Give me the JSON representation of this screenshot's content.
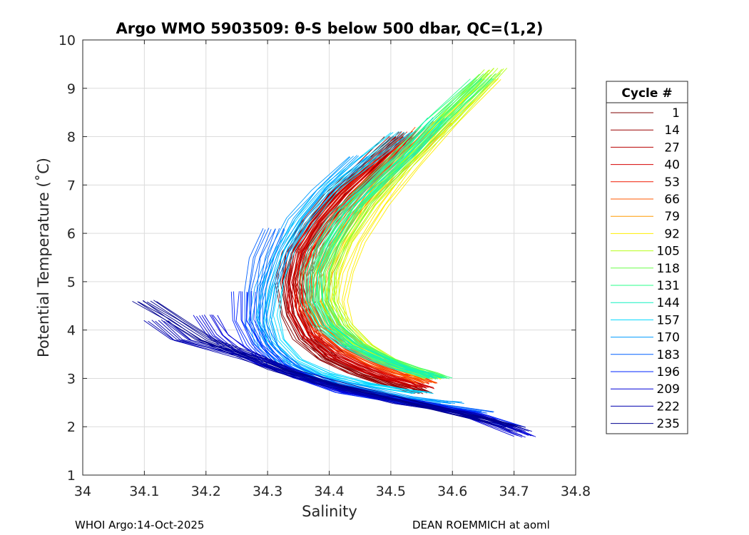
{
  "chart_data": {
    "type": "line",
    "title": "Argo WMO 5903509: θ-S below 500 dbar,  QC=(1,2)",
    "xlabel": "Salinity",
    "ylabel": "Potential Temperature (˚C)",
    "xlim": [
      34,
      34.8
    ],
    "ylim": [
      1,
      10
    ],
    "xticks": [
      "34",
      "34.1",
      "34.2",
      "34.3",
      "34.4",
      "34.5",
      "34.6",
      "34.7",
      "34.8"
    ],
    "yticks": [
      "1",
      "2",
      "3",
      "4",
      "5",
      "6",
      "7",
      "8",
      "9",
      "10"
    ],
    "grid": true,
    "legend": {
      "title": "Cycle #",
      "placement": "right-outside",
      "entries": [
        {
          "label": "1",
          "color": "#7f0000"
        },
        {
          "label": "14",
          "color": "#9a0000"
        },
        {
          "label": "27",
          "color": "#b80000"
        },
        {
          "label": "40",
          "color": "#d40000"
        },
        {
          "label": "53",
          "color": "#f01a00"
        },
        {
          "label": "66",
          "color": "#ff5a00"
        },
        {
          "label": "79",
          "color": "#ff9a00"
        },
        {
          "label": "92",
          "color": "#ffee00"
        },
        {
          "label": "105",
          "color": "#b6ff1a"
        },
        {
          "label": "118",
          "color": "#6aff4a"
        },
        {
          "label": "131",
          "color": "#2aff8a"
        },
        {
          "label": "144",
          "color": "#10f0c0"
        },
        {
          "label": "157",
          "color": "#00d8ff"
        },
        {
          "label": "170",
          "color": "#009cff"
        },
        {
          "label": "183",
          "color": "#0060ff"
        },
        {
          "label": "196",
          "color": "#0024ff"
        },
        {
          "label": "209",
          "color": "#0000d8"
        },
        {
          "label": "222",
          "color": "#0000b0"
        },
        {
          "label": "235",
          "color": "#00008f"
        }
      ]
    },
    "series": [
      {
        "name": "1",
        "s": [
          34.55,
          34.53,
          34.5,
          34.45,
          34.4,
          34.36,
          34.34,
          34.33,
          34.34,
          34.37,
          34.41,
          34.46,
          34.51
        ],
        "t": [
          2.7,
          2.8,
          2.9,
          3.1,
          3.4,
          3.8,
          4.3,
          5.0,
          5.6,
          6.2,
          6.8,
          7.4,
          8.0
        ]
      },
      {
        "name": "14",
        "s": [
          34.55,
          34.53,
          34.5,
          34.45,
          34.4,
          34.37,
          34.35,
          34.34,
          34.35,
          34.38,
          34.42,
          34.47,
          34.52
        ],
        "t": [
          2.7,
          2.8,
          2.9,
          3.1,
          3.4,
          3.8,
          4.3,
          5.0,
          5.6,
          6.2,
          6.8,
          7.4,
          8.0
        ]
      },
      {
        "name": "27",
        "s": [
          34.55,
          34.53,
          34.5,
          34.46,
          34.41,
          34.37,
          34.35,
          34.34,
          34.35,
          34.38,
          34.42,
          34.47,
          34.52
        ],
        "t": [
          2.8,
          2.9,
          3.0,
          3.2,
          3.5,
          3.9,
          4.4,
          5.0,
          5.6,
          6.2,
          6.8,
          7.4,
          8.0
        ]
      },
      {
        "name": "40",
        "s": [
          34.55,
          34.53,
          34.5,
          34.46,
          34.41,
          34.37,
          34.35,
          34.35,
          34.36,
          34.39,
          34.43,
          34.48,
          34.53
        ],
        "t": [
          2.8,
          2.9,
          3.0,
          3.2,
          3.5,
          3.9,
          4.4,
          5.0,
          5.6,
          6.2,
          6.8,
          7.4,
          8.1
        ]
      },
      {
        "name": "53",
        "s": [
          34.56,
          34.54,
          34.51,
          34.47,
          34.42,
          34.38,
          34.36,
          34.36,
          34.37,
          34.4,
          34.44,
          34.49,
          34.54
        ],
        "t": [
          2.9,
          3.0,
          3.1,
          3.3,
          3.6,
          4.0,
          4.5,
          5.1,
          5.7,
          6.3,
          6.9,
          7.5,
          8.1
        ]
      },
      {
        "name": "66",
        "s": [
          34.56,
          34.54,
          34.52,
          34.48,
          34.43,
          34.39,
          34.37,
          34.37,
          34.39,
          34.42,
          34.46,
          34.51,
          34.56
        ],
        "t": [
          2.9,
          3.0,
          3.1,
          3.3,
          3.6,
          4.0,
          4.5,
          5.1,
          5.7,
          6.3,
          6.9,
          7.5,
          8.2
        ]
      },
      {
        "name": "79",
        "s": [
          34.56,
          34.54,
          34.52,
          34.48,
          34.44,
          34.4,
          34.38,
          34.39,
          34.41,
          34.44,
          34.48,
          34.53,
          34.58
        ],
        "t": [
          3.0,
          3.1,
          3.2,
          3.4,
          3.7,
          4.1,
          4.6,
          5.2,
          5.8,
          6.4,
          7.0,
          7.6,
          8.3
        ]
      },
      {
        "name": "92",
        "s": [
          34.57,
          34.55,
          34.53,
          34.49,
          34.45,
          34.42,
          34.41,
          34.42,
          34.44,
          34.48,
          34.53,
          34.59,
          34.66
        ],
        "t": [
          3.0,
          3.1,
          3.2,
          3.4,
          3.7,
          4.1,
          4.6,
          5.2,
          5.8,
          6.6,
          7.4,
          8.3,
          9.2
        ]
      },
      {
        "name": "105",
        "s": [
          34.57,
          34.55,
          34.53,
          34.49,
          34.45,
          34.42,
          34.4,
          34.4,
          34.42,
          34.46,
          34.52,
          34.59,
          34.67
        ],
        "t": [
          3.0,
          3.1,
          3.2,
          3.4,
          3.7,
          4.1,
          4.6,
          5.2,
          5.8,
          6.6,
          7.4,
          8.3,
          9.4
        ]
      },
      {
        "name": "118",
        "s": [
          34.58,
          34.56,
          34.53,
          34.49,
          34.44,
          34.41,
          34.39,
          34.39,
          34.41,
          34.45,
          34.51,
          34.58,
          34.66
        ],
        "t": [
          3.0,
          3.1,
          3.2,
          3.4,
          3.7,
          4.1,
          4.6,
          5.2,
          5.8,
          6.6,
          7.4,
          8.3,
          9.3
        ]
      },
      {
        "name": "131",
        "s": [
          34.58,
          34.56,
          34.53,
          34.49,
          34.44,
          34.4,
          34.38,
          34.38,
          34.4,
          34.44,
          34.5,
          34.57,
          34.65
        ],
        "t": [
          3.0,
          3.1,
          3.2,
          3.4,
          3.7,
          4.1,
          4.6,
          5.2,
          5.8,
          6.6,
          7.4,
          8.3,
          9.2
        ]
      },
      {
        "name": "144",
        "s": [
          34.57,
          34.55,
          34.52,
          34.48,
          34.43,
          34.39,
          34.37,
          34.37,
          34.39,
          34.42,
          34.47,
          34.53,
          34.58
        ],
        "t": [
          3.0,
          3.1,
          3.2,
          3.4,
          3.7,
          4.1,
          4.6,
          5.2,
          5.8,
          6.4,
          7.0,
          7.7,
          8.4
        ]
      },
      {
        "name": "157",
        "s": [
          34.55,
          34.5,
          34.45,
          34.39,
          34.34,
          34.31,
          34.3,
          34.31,
          34.33,
          34.36,
          34.4,
          34.46,
          34.52
        ],
        "t": [
          2.7,
          2.8,
          2.9,
          3.1,
          3.4,
          3.8,
          4.3,
          5.0,
          5.7,
          6.3,
          6.9,
          7.5,
          8.1
        ]
      },
      {
        "name": "170",
        "s": [
          34.6,
          34.52,
          34.45,
          34.38,
          34.33,
          34.3,
          34.29,
          34.3,
          34.32,
          34.35,
          34.39,
          34.45
        ],
        "t": [
          2.5,
          2.6,
          2.8,
          3.0,
          3.3,
          3.7,
          4.2,
          4.9,
          5.6,
          6.3,
          6.9,
          7.6
        ]
      },
      {
        "name": "183",
        "s": [
          34.65,
          34.55,
          34.47,
          34.4,
          34.34,
          34.3,
          34.28,
          34.28,
          34.29,
          34.31
        ],
        "t": [
          2.3,
          2.5,
          2.7,
          2.9,
          3.2,
          3.6,
          4.1,
          4.8,
          5.5,
          6.1
        ]
      },
      {
        "name": "196",
        "s": [
          34.7,
          34.62,
          34.52,
          34.43,
          34.36,
          34.31,
          34.28,
          34.26,
          34.26
        ],
        "t": [
          2.0,
          2.3,
          2.5,
          2.7,
          3.0,
          3.3,
          3.7,
          4.2,
          4.8
        ]
      },
      {
        "name": "209",
        "s": [
          34.72,
          34.64,
          34.54,
          34.44,
          34.36,
          34.3,
          34.25,
          34.22,
          34.2
        ],
        "t": [
          1.8,
          2.2,
          2.5,
          2.7,
          3.0,
          3.3,
          3.6,
          3.9,
          4.3
        ]
      },
      {
        "name": "222",
        "s": [
          34.71,
          34.62,
          34.52,
          34.42,
          34.34,
          34.28,
          34.22,
          34.16,
          34.12
        ],
        "t": [
          1.9,
          2.3,
          2.5,
          2.8,
          3.1,
          3.4,
          3.6,
          3.8,
          4.2
        ]
      },
      {
        "name": "235",
        "s": [
          34.7,
          34.6,
          34.5,
          34.4,
          34.32,
          34.26,
          34.2,
          34.15,
          34.1
        ],
        "t": [
          2.0,
          2.3,
          2.6,
          2.9,
          3.2,
          3.5,
          3.8,
          4.2,
          4.6
        ]
      }
    ]
  },
  "footer": {
    "left": "WHOI Argo:14-Oct-2025",
    "right": "DEAN ROEMMICH at aoml"
  }
}
